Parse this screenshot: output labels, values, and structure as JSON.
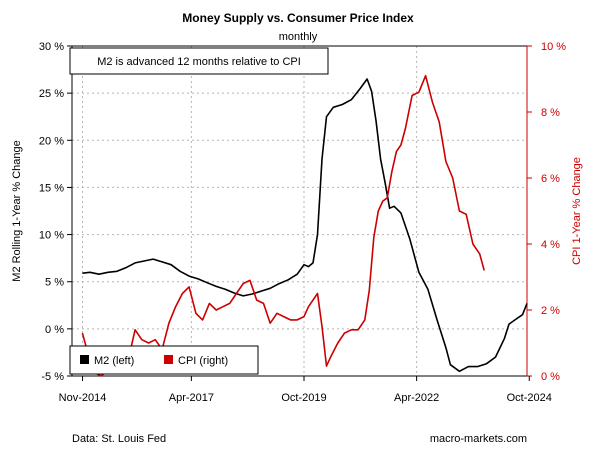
{
  "chart_data": {
    "type": "line",
    "title": "Money Supply vs. Consumer Price Index",
    "subtitle": "monthly",
    "note": "M2 is advanced 12 months relative to CPI",
    "ylabel_left": "M2 Rolling 1-Year % Change",
    "ylabel_right": "CPI 1-Year % Change",
    "ylim_left": [
      -5,
      30
    ],
    "ylim_right": [
      0,
      10
    ],
    "yticks_left": [
      "-5 %",
      "0 %",
      "5 %",
      "10 %",
      "15 %",
      "20 %",
      "25 %",
      "30 %"
    ],
    "yticks_right": [
      "0 %",
      "2 %",
      "4 %",
      "6 %",
      "8 %",
      "10 %"
    ],
    "xlim": [
      2014.6,
      2024.7
    ],
    "xticks": [
      {
        "label": "Nov-2014",
        "x": 2014.833
      },
      {
        "label": "Apr-2017",
        "x": 2017.25
      },
      {
        "label": "Oct-2019",
        "x": 2019.75
      },
      {
        "label": "Apr-2022",
        "x": 2022.25
      },
      {
        "label": "Oct-2024",
        "x": 2024.75
      }
    ],
    "grid": true,
    "legend_position": "bottom-left",
    "colors": {
      "m2": "#000000",
      "cpi": "#cc0000"
    },
    "series": [
      {
        "name": "M2 (left)",
        "axis": "left",
        "x": [
          2014.83,
          2015.0,
          2015.2,
          2015.4,
          2015.6,
          2015.8,
          2016.0,
          2016.2,
          2016.4,
          2016.6,
          2016.8,
          2017.0,
          2017.2,
          2017.4,
          2017.6,
          2017.8,
          2018.0,
          2018.2,
          2018.4,
          2018.6,
          2018.8,
          2019.0,
          2019.2,
          2019.4,
          2019.6,
          2019.75,
          2019.85,
          2019.95,
          2020.05,
          2020.15,
          2020.25,
          2020.4,
          2020.6,
          2020.8,
          2021.0,
          2021.15,
          2021.25,
          2021.35,
          2021.45,
          2021.55,
          2021.65,
          2021.75,
          2021.9,
          2022.1,
          2022.3,
          2022.5,
          2022.7,
          2022.9,
          2023.0,
          2023.2,
          2023.4,
          2023.6,
          2023.8,
          2024.0,
          2024.2,
          2024.3,
          2024.45,
          2024.6,
          2024.7
        ],
        "values": [
          5.9,
          6.0,
          5.8,
          6.0,
          6.1,
          6.5,
          7.0,
          7.2,
          7.4,
          7.1,
          6.8,
          6.1,
          5.6,
          5.3,
          4.9,
          4.5,
          4.2,
          3.8,
          3.5,
          3.7,
          4.0,
          4.3,
          4.8,
          5.2,
          5.8,
          6.8,
          6.6,
          7.0,
          10.0,
          18.0,
          22.5,
          23.5,
          23.8,
          24.3,
          25.5,
          26.5,
          25.2,
          22.0,
          18.0,
          15.5,
          12.8,
          13.0,
          12.3,
          9.5,
          6.0,
          4.2,
          1.0,
          -2.0,
          -3.8,
          -4.5,
          -4.0,
          -4.0,
          -3.7,
          -3.0,
          -1.0,
          0.5,
          1.0,
          1.5,
          2.7
        ]
      },
      {
        "name": "CPI (right)",
        "axis": "right",
        "x": [
          2014.83,
          2014.95,
          2015.1,
          2015.25,
          2015.4,
          2015.55,
          2015.7,
          2015.85,
          2016.0,
          2016.15,
          2016.3,
          2016.45,
          2016.6,
          2016.75,
          2016.9,
          2017.05,
          2017.2,
          2017.35,
          2017.5,
          2017.65,
          2017.8,
          2017.95,
          2018.1,
          2018.25,
          2018.4,
          2018.55,
          2018.7,
          2018.85,
          2019.0,
          2019.15,
          2019.3,
          2019.45,
          2019.6,
          2019.75,
          2019.85,
          2019.95,
          2020.05,
          2020.15,
          2020.25,
          2020.35,
          2020.5,
          2020.65,
          2020.8,
          2020.95,
          2021.1,
          2021.2,
          2021.3,
          2021.4,
          2021.5,
          2021.6,
          2021.7,
          2021.8,
          2021.9,
          2022.0,
          2022.15,
          2022.3,
          2022.45,
          2022.6,
          2022.75,
          2022.9,
          2023.05,
          2023.2,
          2023.35,
          2023.5,
          2023.65,
          2023.75
        ],
        "values": [
          1.3,
          0.7,
          0.1,
          0.0,
          0.2,
          0.2,
          0.2,
          0.5,
          1.4,
          1.1,
          1.0,
          1.1,
          0.8,
          1.6,
          2.1,
          2.5,
          2.7,
          1.9,
          1.7,
          2.2,
          2.0,
          2.1,
          2.2,
          2.5,
          2.8,
          2.9,
          2.3,
          2.2,
          1.6,
          1.9,
          1.8,
          1.7,
          1.7,
          1.8,
          2.1,
          2.3,
          2.5,
          1.5,
          0.3,
          0.6,
          1.0,
          1.3,
          1.4,
          1.4,
          1.7,
          2.6,
          4.2,
          5.0,
          5.3,
          5.4,
          6.2,
          6.8,
          7.0,
          7.5,
          8.5,
          8.6,
          9.1,
          8.3,
          7.7,
          6.5,
          6.0,
          5.0,
          4.9,
          4.0,
          3.7,
          3.2
        ]
      }
    ]
  },
  "footer": {
    "source": "Data: St. Louis Fed",
    "site": "macro-markets.com"
  }
}
